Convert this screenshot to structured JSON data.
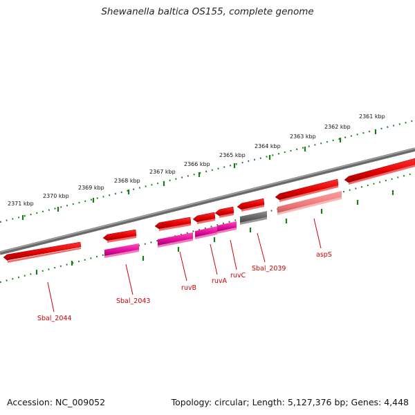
{
  "title": "Shewanella baltica OS155, complete genome",
  "accession": "Accession: NC_009052",
  "stats": "Topology: circular; Length: 5,127,376 bp; Genes: 4,448",
  "scale_labels": [
    "2371 kbp",
    "2370 kbp",
    "2369 kbp",
    "2368 kbp",
    "2367 kbp",
    "2366 kbp",
    "2365 kbp",
    "2364 kbp",
    "2363 kbp",
    "2362 kbp",
    "2361 kbp"
  ],
  "gene_labels": [
    "Sbal_2044",
    "Sbal_2043",
    "ruvB",
    "ruvA",
    "ruvC",
    "Sbal_2039",
    "aspS"
  ],
  "colors": {
    "cds": "#e00000",
    "cds_light": "#f08080",
    "magenta": "#e0109a",
    "gray_track": "#666666",
    "backbone": "#777777",
    "ticks": "#1a7a1a",
    "label": "#cc0000"
  }
}
